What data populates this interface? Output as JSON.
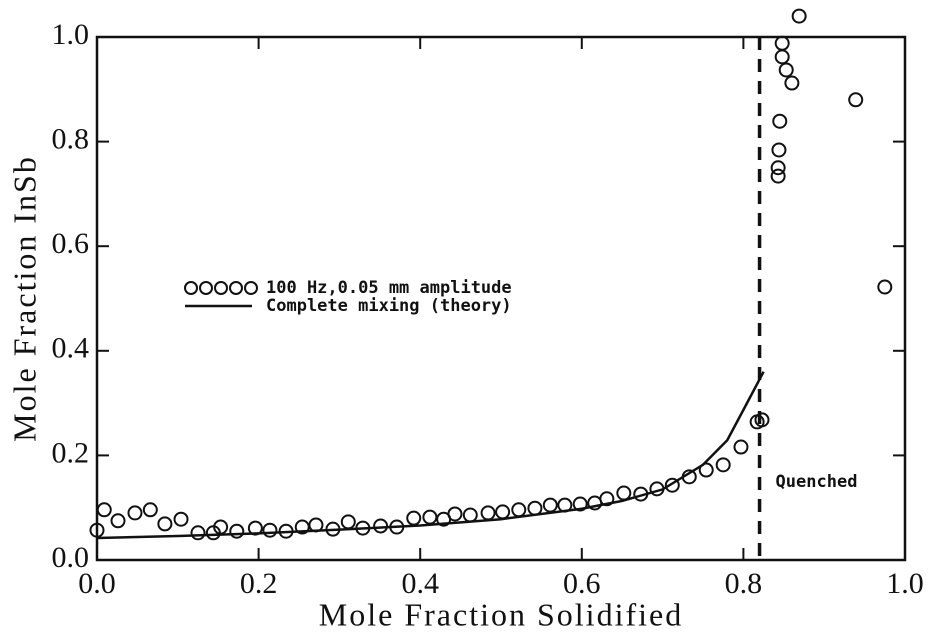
{
  "chart_data": {
    "type": "scatter",
    "xlabel": "Mole Fraction Solidified",
    "ylabel": "Mole Fraction InSb",
    "xlim": [
      0,
      1
    ],
    "ylim": [
      0,
      1
    ],
    "xticks": [
      {
        "value": 0,
        "label": "0.0"
      },
      {
        "value": 0.2,
        "label": "0.2"
      },
      {
        "value": 0.4,
        "label": "0.4"
      },
      {
        "value": 0.6,
        "label": "0.6"
      },
      {
        "value": 0.8,
        "label": "0.8"
      },
      {
        "value": 1,
        "label": "1.0"
      }
    ],
    "yticks": [
      {
        "value": 0,
        "label": "0.0"
      },
      {
        "value": 0.2,
        "label": "0.2"
      },
      {
        "value": 0.4,
        "label": "0.4"
      },
      {
        "value": 0.6,
        "label": "0.6"
      },
      {
        "value": 0.8,
        "label": "0.8"
      },
      {
        "value": 1,
        "label": "1.0"
      }
    ],
    "series": [
      {
        "name": "100 Hz,0.05 mm amplitude",
        "color": "#111111",
        "style": "markers",
        "x": [
          0.0,
          0.009,
          0.026,
          0.047,
          0.066,
          0.084,
          0.104,
          0.125,
          0.144,
          0.153,
          0.173,
          0.196,
          0.214,
          0.234,
          0.254,
          0.271,
          0.292,
          0.311,
          0.329,
          0.351,
          0.371,
          0.392,
          0.412,
          0.429,
          0.443,
          0.462,
          0.484,
          0.502,
          0.522,
          0.542,
          0.561,
          0.579,
          0.598,
          0.616,
          0.631,
          0.652,
          0.673,
          0.693,
          0.712,
          0.733,
          0.754,
          0.775,
          0.797,
          0.817,
          0.823,
          0.869,
          0.848,
          0.848,
          0.853,
          0.86,
          0.845,
          0.844,
          0.843,
          0.843,
          0.939,
          0.975
        ],
        "values": [
          0.057,
          0.096,
          0.075,
          0.09,
          0.096,
          0.069,
          0.078,
          0.052,
          0.052,
          0.063,
          0.055,
          0.061,
          0.057,
          0.055,
          0.063,
          0.067,
          0.059,
          0.073,
          0.061,
          0.065,
          0.063,
          0.08,
          0.082,
          0.078,
          0.088,
          0.086,
          0.09,
          0.092,
          0.096,
          0.099,
          0.105,
          0.105,
          0.107,
          0.109,
          0.117,
          0.128,
          0.126,
          0.136,
          0.143,
          0.159,
          0.172,
          0.182,
          0.216,
          0.264,
          0.268,
          1.04,
          0.988,
          0.962,
          0.937,
          0.912,
          0.839,
          0.784,
          0.75,
          0.734,
          0.88,
          0.522
        ]
      },
      {
        "name": "Complete mixing (theory)",
        "color": "#111111",
        "style": "line",
        "x": [
          0,
          0.1,
          0.2,
          0.3,
          0.4,
          0.5,
          0.6,
          0.65,
          0.7,
          0.75,
          0.78,
          0.8,
          0.825
        ],
        "values": [
          0.042,
          0.046,
          0.051,
          0.058,
          0.066,
          0.078,
          0.098,
          0.113,
          0.135,
          0.182,
          0.229,
          0.287,
          0.36
        ]
      }
    ],
    "vline": 0.82,
    "annotation": "Quenched"
  }
}
